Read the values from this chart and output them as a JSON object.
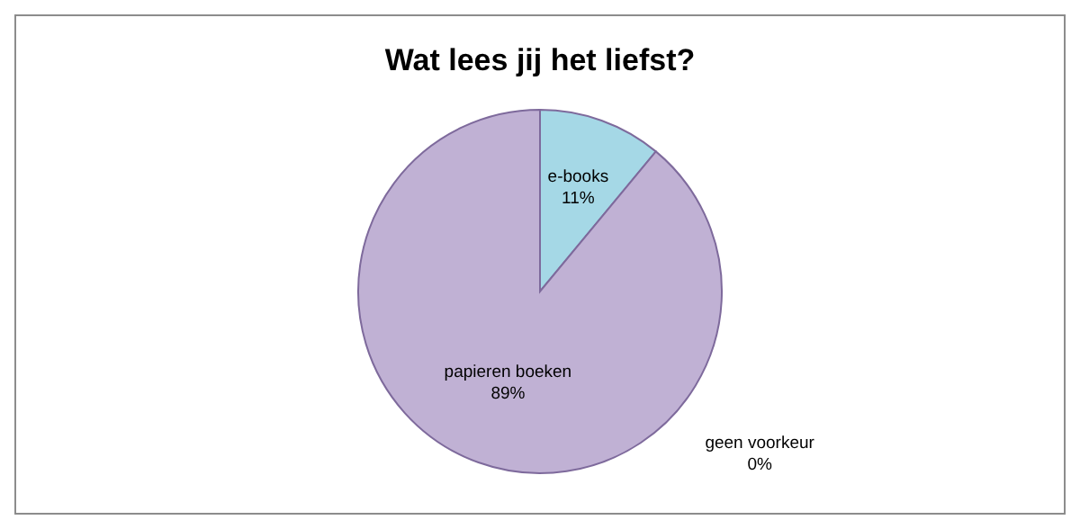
{
  "chart_data": {
    "type": "pie",
    "title": "Wat lees jij het liefst?",
    "categories": [
      "e-books",
      "papieren boeken",
      "geen voorkeur"
    ],
    "values": [
      11,
      89,
      0
    ],
    "colors": [
      "#a5d8e6",
      "#c0b1d4",
      "#c4d79b"
    ],
    "value_labels": [
      "11%",
      "89%",
      "0%"
    ],
    "legend": false
  }
}
